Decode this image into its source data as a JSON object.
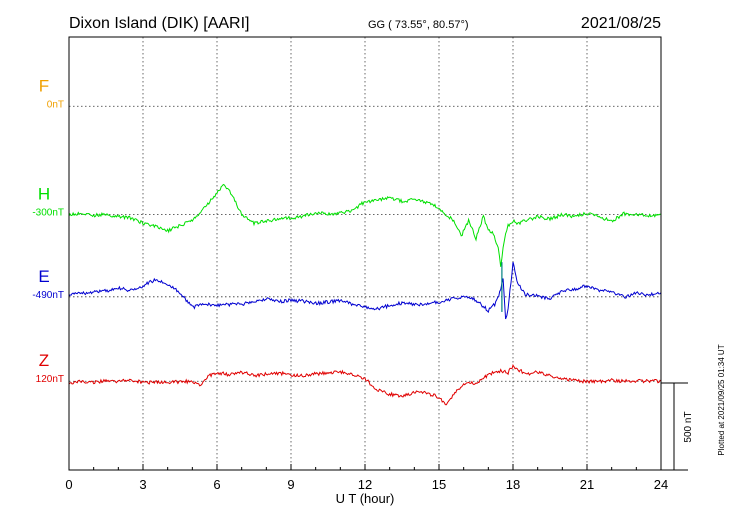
{
  "header": {
    "station": "Dixon Island (DIK)  [AARI]",
    "coords": "GG ( 73.55°,  80.57°)",
    "date": "2021/08/25"
  },
  "side_note": "Plotted at 2021/09/25 01:34 UT",
  "scale_label": "500 nT",
  "colors": {
    "F": "#f0a000",
    "H": "#00e000",
    "E": "#0000d0",
    "Z": "#e00000",
    "teal": "#008080"
  },
  "chart_data": {
    "type": "line",
    "xlabel": "U T (hour)",
    "xlim": [
      0,
      24
    ],
    "xticks": [
      0,
      3,
      6,
      9,
      12,
      15,
      18,
      21,
      24
    ],
    "ylim": [
      0,
      1000
    ],
    "grid": true,
    "scale_bar_nT": 500,
    "series": [
      {
        "name": "F",
        "baseline_label": "0nT",
        "color": "#f0a000",
        "baseline": 840,
        "x": [],
        "y": []
      },
      {
        "name": "H",
        "baseline_label": "-300nT",
        "color": "#00e000",
        "baseline": 590,
        "x": [
          0,
          0.5,
          1,
          1.5,
          2,
          2.5,
          3,
          3.5,
          4,
          4.5,
          5,
          5.5,
          6,
          6.3,
          6.6,
          7,
          7.5,
          8,
          8.5,
          9,
          9.5,
          10,
          10.5,
          11,
          11.5,
          12,
          12.5,
          13,
          13.5,
          14,
          14.5,
          15,
          15.3,
          15.6,
          15.9,
          16.2,
          16.5,
          16.8,
          17,
          17.2,
          17.4,
          17.5,
          17.6,
          17.7,
          17.8,
          18,
          18.2,
          18.5,
          19,
          19.5,
          20,
          20.5,
          21,
          21.5,
          22,
          22.5,
          23,
          23.5,
          24
        ],
        "y": [
          590,
          592,
          588,
          590,
          585,
          582,
          570,
          563,
          552,
          565,
          575,
          605,
          640,
          660,
          635,
          590,
          570,
          575,
          580,
          582,
          586,
          595,
          592,
          593,
          600,
          620,
          622,
          630,
          620,
          625,
          618,
          605,
          590,
          575,
          540,
          575,
          535,
          585,
          555,
          545,
          515,
          470,
          510,
          545,
          565,
          575,
          570,
          575,
          585,
          580,
          590,
          585,
          593,
          585,
          575,
          592,
          590,
          588,
          590
        ]
      },
      {
        "name": "E",
        "baseline_label": "-490nT",
        "color": "#0000d0",
        "baseline": 400,
        "x": [
          0,
          0.5,
          1,
          1.5,
          2,
          2.5,
          3,
          3.5,
          4,
          4.5,
          5,
          5.5,
          6,
          6.5,
          7,
          7.5,
          8,
          8.5,
          9,
          9.5,
          10,
          10.5,
          11,
          11.5,
          12,
          12.5,
          13,
          13.5,
          14,
          14.5,
          15,
          15.5,
          16,
          16.5,
          17,
          17.3,
          17.5,
          17.6,
          17.7,
          17.8,
          18,
          18.2,
          18.5,
          19,
          19.5,
          20,
          20.5,
          21,
          21.5,
          22,
          22.5,
          23,
          23.5,
          24
        ],
        "y": [
          405,
          408,
          412,
          414,
          420,
          415,
          425,
          440,
          430,
          410,
          375,
          385,
          380,
          382,
          383,
          389,
          395,
          388,
          392,
          390,
          385,
          388,
          392,
          383,
          376,
          372,
          380,
          386,
          382,
          384,
          388,
          395,
          400,
          392,
          368,
          385,
          415,
          440,
          350,
          370,
          480,
          430,
          405,
          402,
          396,
          412,
          418,
          425,
          415,
          412,
          400,
          408,
          404,
          410
        ]
      },
      {
        "name": "Z",
        "baseline_label": "120nT",
        "color": "#e00000",
        "baseline": 205,
        "x": [
          0,
          0.5,
          1,
          1.5,
          2,
          2.5,
          3,
          3.5,
          4,
          4.5,
          5,
          5.3,
          5.6,
          6,
          6.5,
          7,
          7.5,
          8,
          8.5,
          9,
          9.5,
          10,
          10.5,
          11,
          11.5,
          12,
          12.5,
          13,
          13.5,
          14,
          14.5,
          15,
          15.3,
          15.6,
          16,
          16.5,
          17,
          17.5,
          17.8,
          18,
          18.5,
          19,
          19.5,
          20,
          20.5,
          21,
          21.5,
          22,
          22.5,
          23,
          23.5,
          24
        ],
        "y": [
          202,
          204,
          203,
          205,
          204,
          208,
          202,
          203,
          202,
          204,
          205,
          195,
          215,
          225,
          220,
          226,
          218,
          221,
          224,
          220,
          218,
          222,
          224,
          226,
          222,
          210,
          185,
          175,
          170,
          180,
          178,
          168,
          148,
          175,
          200,
          200,
          220,
          230,
          225,
          240,
          222,
          226,
          218,
          212,
          206,
          205,
          204,
          207,
          205,
          205,
          206,
          205
        ]
      }
    ]
  }
}
